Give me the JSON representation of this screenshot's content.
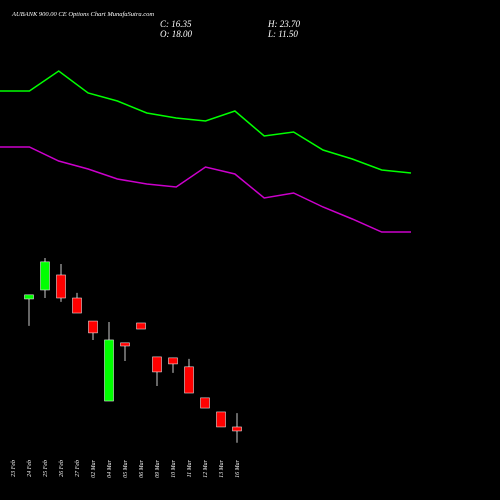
{
  "chart_data": {
    "type": "candlestick",
    "title": "AUBANK 900.00 CE Options Chart MunafaSutra.com",
    "ohlc_summary": {
      "close_label": "C: 16.35",
      "high_label": "H: 23.70",
      "open_label": "O: 18.00",
      "low_label": "L: 11.50"
    },
    "categories": [
      "23 Feb",
      "24 Feb",
      "25 Feb",
      "26 Feb",
      "27 Feb",
      "02 Mar",
      "04 Mar",
      "05 Mar",
      "06 Mar",
      "09 Mar",
      "10 Mar",
      "11 Mar",
      "12 Mar",
      "13 Mar",
      "16 Mar"
    ],
    "open": [
      null,
      70.8,
      74.5,
      80.7,
      71.2,
      61.7,
      28.7,
      52.7,
      60.9,
      46.9,
      46.5,
      42.8,
      30.0,
      24.2,
      18.0
    ],
    "high": [
      null,
      72.5,
      87.7,
      85.2,
      73.3,
      61.7,
      61.3,
      52.7,
      60.9,
      46.9,
      46.5,
      46.1,
      30.0,
      24.2,
      23.7
    ],
    "low": [
      null,
      59.7,
      71.2,
      69.6,
      65.0,
      53.9,
      28.7,
      45.2,
      58.4,
      34.9,
      40.3,
      32.0,
      25.8,
      18.0,
      11.5
    ],
    "close": [
      null,
      72.5,
      86.1,
      71.2,
      65.0,
      56.8,
      53.9,
      51.4,
      58.4,
      40.7,
      44.0,
      32.0,
      25.8,
      18.0,
      16.35
    ],
    "up_color": "#00ff00",
    "down_color": "#ff0000",
    "ylim": [
      8.5,
      91
    ],
    "series": [
      {
        "color": "#00ff00",
        "axis": "y2",
        "values": [
          409,
          409,
          429,
          407,
          399,
          387,
          382,
          379,
          389,
          364,
          368,
          350,
          341,
          330,
          327
        ]
      },
      {
        "color": "#cc00cc",
        "axis": "y2",
        "values": [
          353,
          353,
          339,
          331,
          321,
          316,
          313,
          333,
          326,
          302,
          307,
          293,
          281,
          268,
          268
        ]
      }
    ],
    "y2lim": [
      0,
      500
    ]
  }
}
